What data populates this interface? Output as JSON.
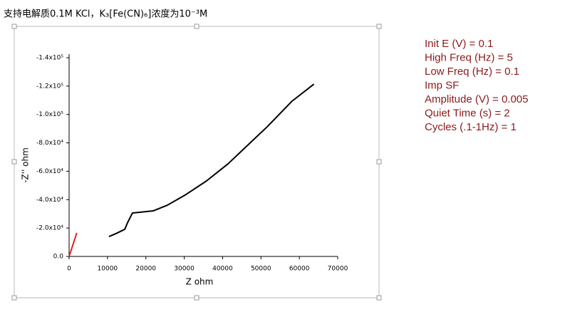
{
  "chart_data": {
    "type": "line",
    "title": "支持电解质0.1M  KCl，K₃[Fe(CN)₆]浓度为10⁻³M",
    "x_label": "Z  ohm",
    "y_label": "-Z'' ohm",
    "xlim": [
      0,
      70000
    ],
    "xticks": [
      0,
      10000,
      20000,
      30000,
      40000,
      50000,
      60000,
      70000
    ],
    "ylim": [
      0,
      -140000
    ],
    "yticks": [
      {
        "value": 0,
        "label": "0.0"
      },
      {
        "value": -20000,
        "label": "-2.0x10⁴"
      },
      {
        "value": -40000,
        "label": "-4.0x10⁴"
      },
      {
        "value": -60000,
        "label": "-6.0x10⁴"
      },
      {
        "value": -80000,
        "label": "-8.0x10⁴"
      },
      {
        "value": -100000,
        "label": "-1.0x10⁵"
      },
      {
        "value": -120000,
        "label": "-1.2x10⁵"
      },
      {
        "value": -140000,
        "label": "-1.4x10⁵"
      }
    ],
    "series": [
      {
        "color": "#000000",
        "x": [
          10400,
          12200,
          14500,
          15200,
          16500,
          18400,
          21900,
          25600,
          30200,
          35800,
          41400,
          46900,
          51600,
          58100,
          63800
        ],
        "values": [
          -14000,
          -16100,
          -19100,
          -23600,
          -30600,
          -31100,
          -32100,
          -36100,
          -43200,
          -53200,
          -65200,
          -79300,
          -91300,
          -109400,
          -121400
        ]
      },
      {
        "color": "#e0201b",
        "x": [
          0,
          2000
        ],
        "values": [
          0,
          -16600
        ]
      }
    ],
    "parameters": [
      "Init E (V) = 0.1",
      "High Freq (Hz) = 5",
      "Low Freq (Hz) = 0.1",
      "Imp SF",
      "Amplitude (V) = 0.005",
      "Quiet Time (s) = 2",
      "Cycles (.1-1Hz) = 1"
    ],
    "parameter_color": "#8b1a1a"
  }
}
